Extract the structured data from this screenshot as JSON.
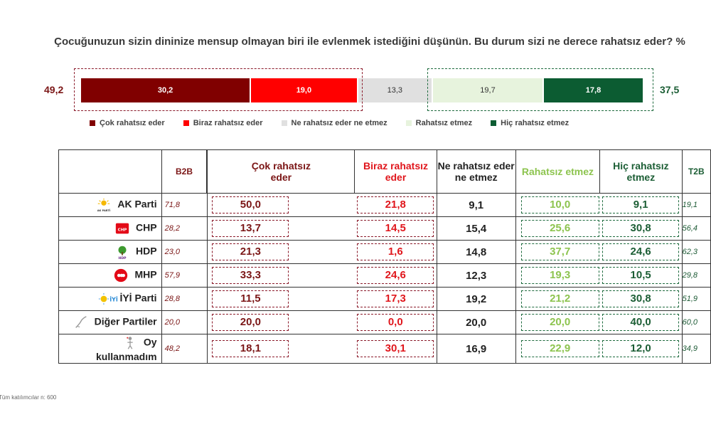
{
  "chart_data": {
    "type": "bar",
    "title": "Çocuğunuzun sizin dininize mensup olmayan biri ile evlenmek istediğini düşünün. Bu durum sizi ne derece rahatsız eder? %",
    "summary": {
      "negative_total": "49,2",
      "positive_total": "37,5",
      "segments": [
        {
          "name": "Çok rahatsız eder",
          "value": 30.2,
          "label": "30,2",
          "color": "#800000"
        },
        {
          "name": "Biraz rahatsız eder",
          "value": 19.0,
          "label": "19,0",
          "color": "#ff0000"
        },
        {
          "name": "Ne rahatsız eder ne etmez",
          "value": 13.3,
          "label": "13,3",
          "color": "#e0e0e0"
        },
        {
          "name": "Rahatsız etmez",
          "value": 19.7,
          "label": "19,7",
          "color": "#e7f3dd"
        },
        {
          "name": "Hiç rahatsız etmez",
          "value": 17.8,
          "label": "17,8",
          "color": "#0c5c32"
        }
      ]
    },
    "table": {
      "headers": {
        "b2b": "B2B",
        "cok": "Çok rahatsız eder",
        "biraz": "Biraz rahatsız eder",
        "ne": "Ne rahatsız eder ne etmez",
        "rahatsiz": "Rahatsız etmez",
        "hic": "Hiç rahatsız etmez",
        "t2b": "T2B"
      },
      "rows": [
        {
          "party": "AK Parti",
          "b2b": "71,8",
          "cok": "50,0",
          "biraz": "21,8",
          "ne": "9,1",
          "rahatsiz": "10,0",
          "hic": "9,1",
          "t2b": "19,1"
        },
        {
          "party": "CHP",
          "b2b": "28,2",
          "cok": "13,7",
          "biraz": "14,5",
          "ne": "15,4",
          "rahatsiz": "25,6",
          "hic": "30,8",
          "t2b": "56,4"
        },
        {
          "party": "HDP",
          "b2b": "23,0",
          "cok": "21,3",
          "biraz": "1,6",
          "ne": "14,8",
          "rahatsiz": "37,7",
          "hic": "24,6",
          "t2b": "62,3"
        },
        {
          "party": "MHP",
          "b2b": "57,9",
          "cok": "33,3",
          "biraz": "24,6",
          "ne": "12,3",
          "rahatsiz": "19,3",
          "hic": "10,5",
          "t2b": "29,8"
        },
        {
          "party": "İYİ Parti",
          "b2b": "28,8",
          "cok": "11,5",
          "biraz": "17,3",
          "ne": "19,2",
          "rahatsiz": "21,2",
          "hic": "30,8",
          "t2b": "51,9"
        },
        {
          "party": "Diğer Partiler",
          "b2b": "20,0",
          "cok": "20,0",
          "biraz": "0,0",
          "ne": "20,0",
          "rahatsiz": "20,0",
          "hic": "40,0",
          "t2b": "60,0"
        },
        {
          "party": "Oy kullanmadım",
          "b2b": "48,2",
          "cok": "18,1",
          "biraz": "30,1",
          "ne": "16,9",
          "rahatsiz": "22,9",
          "hic": "12,0",
          "t2b": "34,9"
        }
      ]
    }
  },
  "logos": {
    "ak_parti": "AK PARTİ",
    "chp": "CHP",
    "hdp": "HDP",
    "iyi": "İYİ"
  },
  "footnote": "Tüm katılımcılar n: 600"
}
